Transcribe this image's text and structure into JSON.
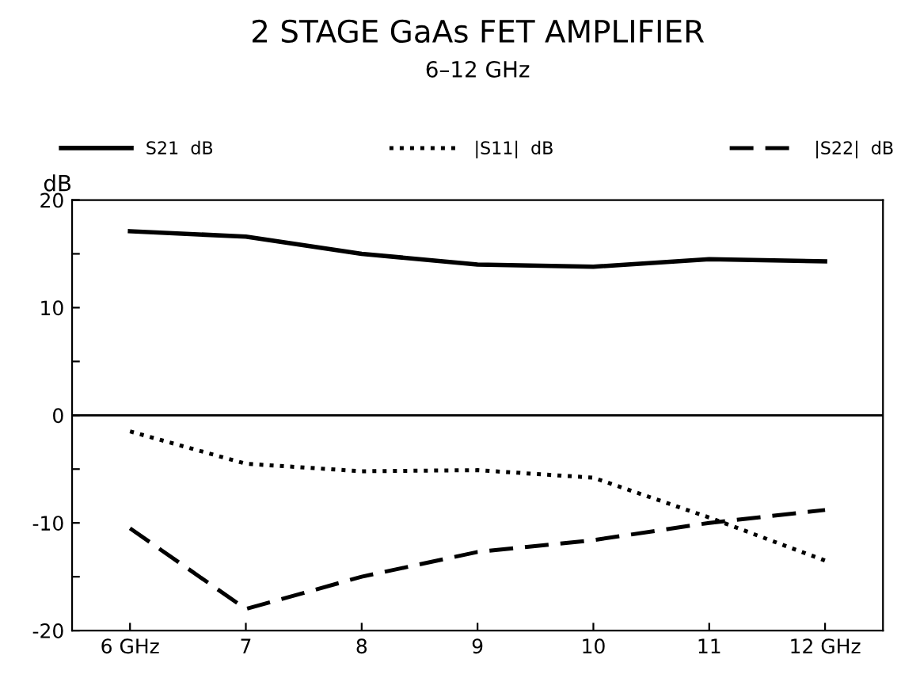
{
  "chart_data": {
    "type": "line",
    "title": "2 STAGE GaAs FET AMPLIFIER",
    "subtitle": "6–12 GHz",
    "ylabel": "dB",
    "x": [
      6,
      7,
      8,
      9,
      10,
      11,
      12
    ],
    "series": [
      {
        "name": "S21  dB",
        "color": "#000000",
        "line_style": "solid",
        "values": [
          17.1,
          16.6,
          15.0,
          14.0,
          13.8,
          14.5,
          14.3
        ]
      },
      {
        "name": "|S11|  dB",
        "color": "#000000",
        "line_style": "dotted",
        "values": [
          -1.5,
          -4.5,
          -5.2,
          -5.1,
          -5.8,
          -9.5,
          -13.5
        ]
      },
      {
        "name": "|S22|  dB",
        "color": "#000000",
        "line_style": "dashed",
        "values": [
          -10.5,
          -18.0,
          -15.0,
          -12.7,
          -11.6,
          -10.0,
          -8.8
        ]
      }
    ],
    "xlim": [
      5.5,
      12.5
    ],
    "xticks": [
      {
        "value": 6,
        "label": "6 GHz"
      },
      7,
      8,
      9,
      10,
      11,
      {
        "value": 12,
        "label": "12 GHz"
      }
    ],
    "ylim": [
      -20,
      20
    ],
    "yticks": [
      -20,
      {
        "value": -15,
        "label": null
      },
      -10,
      {
        "value": -5,
        "label": null
      },
      0,
      {
        "value": 5,
        "label": null
      },
      10,
      {
        "value": 15,
        "label": null
      },
      20
    ],
    "ref_lines": [
      {
        "axis": "y",
        "value": 0,
        "color": "#000000"
      }
    ],
    "grid": false,
    "legend": "top",
    "marker": "none"
  }
}
